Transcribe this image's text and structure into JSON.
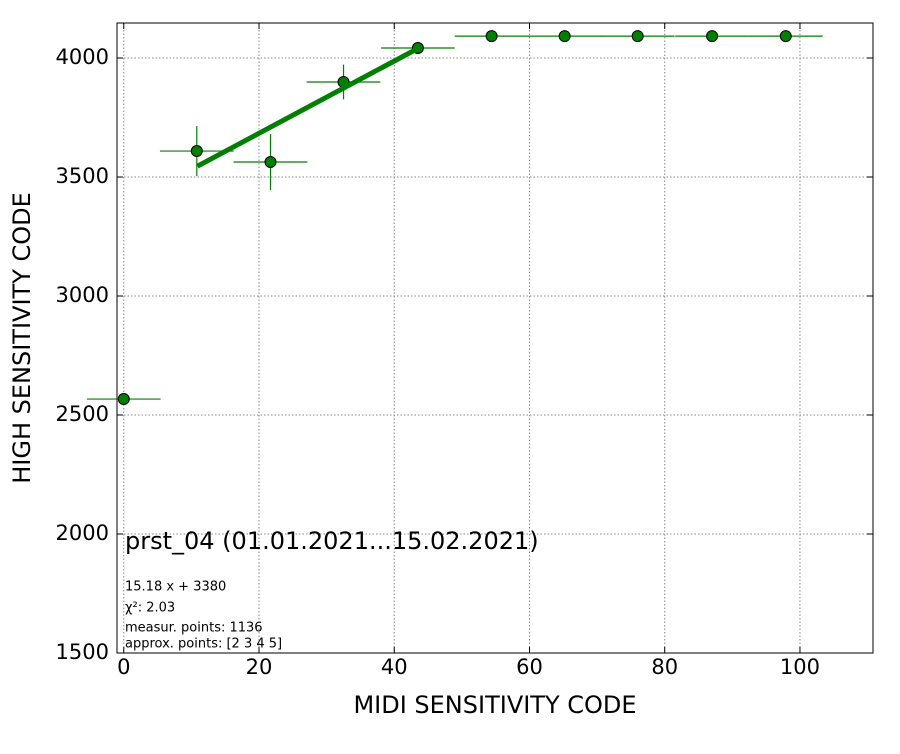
{
  "chart_data": {
    "type": "scatter",
    "xlabel": "MIDI SENSITIVITY CODE",
    "ylabel": "HIGH SENSITIVITY CODE",
    "annotations": [
      "prst_04 (01.01.2021...15.02.2021)",
      "15.18 x + 3380",
      "χ²: 2.03",
      "measur. points: 1136",
      "approx. points: [2 3 4 5]"
    ],
    "xlim": [
      -1,
      110.8
    ],
    "ylim": [
      1500,
      4147
    ],
    "xticks": [
      0,
      20,
      40,
      60,
      80,
      100
    ],
    "yticks": [
      1500,
      2000,
      2500,
      3000,
      3500,
      4000
    ],
    "grid": true,
    "series": [
      {
        "color": "#008000",
        "x": [
          0,
          10.8,
          21.7,
          32.5,
          43.5,
          54.4,
          65.2,
          76.0,
          87.0,
          97.9
        ],
        "values": [
          2567,
          3609,
          3563,
          3899,
          4042,
          4092,
          4092,
          4092,
          4092,
          4092
        ],
        "xerr": [
          5.45,
          5.45,
          5.45,
          5.45,
          5.45,
          5.45,
          5.45,
          5.45,
          5.45,
          5.45
        ],
        "yerr": [
          0,
          105,
          118,
          73,
          20,
          0,
          0,
          0,
          0,
          0
        ]
      },
      {
        "color": "#008000",
        "x": [
          10.9,
          43.5
        ],
        "values": [
          3545.5,
          4040.3
        ],
        "line": true
      }
    ]
  }
}
